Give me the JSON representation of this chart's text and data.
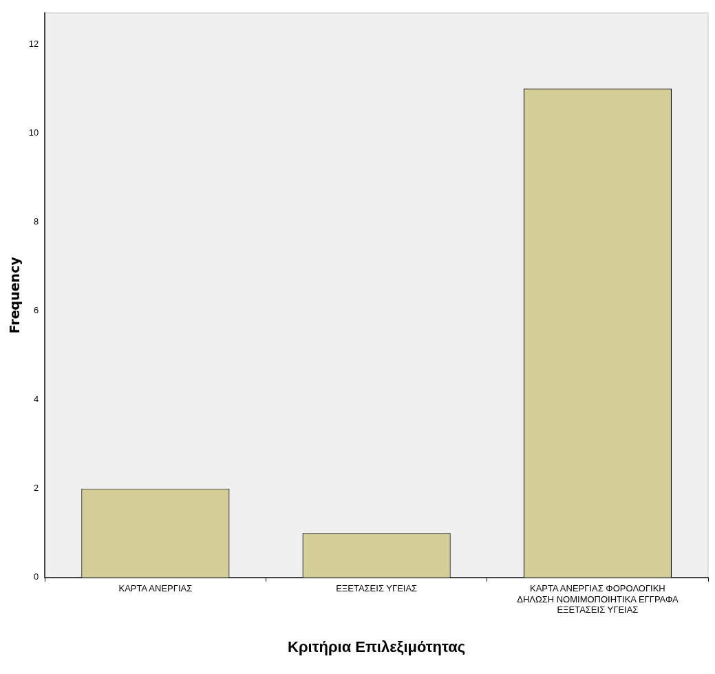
{
  "chart_data": {
    "type": "bar",
    "xlabel": "Κριτήρια Επιλεξιμότητας",
    "ylabel": "Frequency",
    "categories": [
      "ΚΑΡΤΑ ΑΝΕΡΓΙΑΣ",
      "ΕΞΕΤΑΣΕΙΣ ΥΓΕΙΑΣ",
      "ΚΑΡΤΑ ΑΝΕΡΓΙΑΣ ΦΟΡΟΛΟΓΙΚΗ ΔΗΛΩΣΗ ΝΟΜΙΜΟΠΟΙΗΤΙΚΑ ΕΓΓΡΑΦΑ ΕΞΕΤΑΣΕΙΣ ΥΓΕΙΑΣ"
    ],
    "values": [
      2,
      1,
      11
    ],
    "color": "#d3ce97",
    "ylim": [
      0,
      12.7
    ],
    "yticks": [
      0,
      2,
      4,
      6,
      8,
      10,
      12
    ],
    "grid": false,
    "legend": false
  }
}
